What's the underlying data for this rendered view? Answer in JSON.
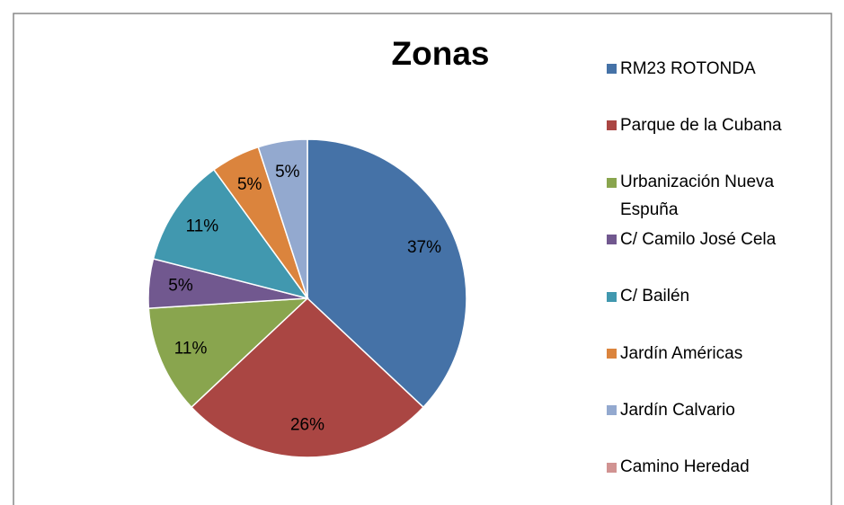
{
  "chart_data": {
    "type": "pie",
    "title": "Zonas",
    "categories": [
      "RM23 ROTONDA",
      "Parque de la Cubana",
      "Urbanización Nueva Espuña",
      "C/ Camilo José Cela",
      "C/ Bailén",
      "Jardín Américas",
      "Jardín Calvario",
      "Camino Heredad"
    ],
    "values": [
      37,
      26,
      11,
      5,
      11,
      5,
      5,
      0
    ],
    "value_labels": [
      "37%",
      "26%",
      "11%",
      "5%",
      "11%",
      "5%",
      "5%",
      null
    ],
    "colors": [
      "#4572a7",
      "#aa4643",
      "#89a54e",
      "#71588f",
      "#4198af",
      "#db843d",
      "#93a9cf",
      "#d19392"
    ],
    "legend": "right"
  }
}
